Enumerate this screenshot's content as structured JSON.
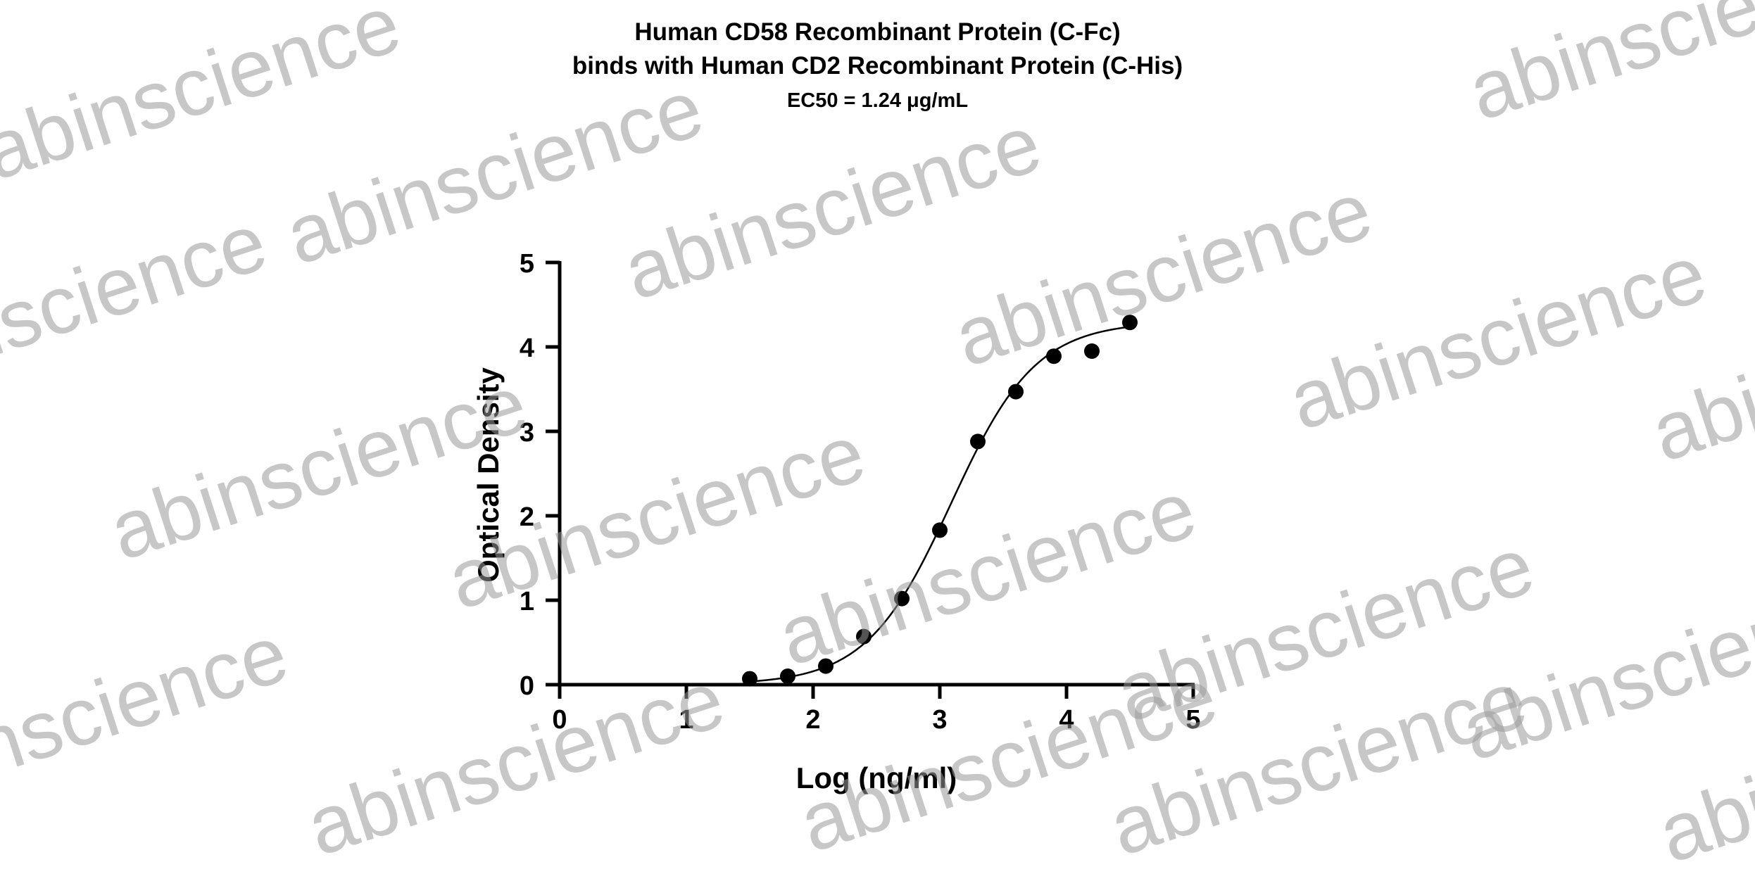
{
  "chart_data": {
    "type": "scatter",
    "title": "Human CD58 Recombinant Protein (C-Fc)",
    "subtitle": "binds with Human CD2 Recombinant Protein (C-His)",
    "annotation": "EC50 = 1.24 μg/mL",
    "xlabel": "Log (ng/ml)",
    "ylabel": "Optical Density",
    "xlim": [
      0,
      5
    ],
    "ylim": [
      0,
      5
    ],
    "xticks": [
      "0",
      "1",
      "2",
      "3",
      "4",
      "5"
    ],
    "yticks": [
      "0",
      "1",
      "2",
      "3",
      "4",
      "5"
    ],
    "grid": false,
    "legend": "none",
    "points": [
      {
        "x": 1.5,
        "y": 0.07
      },
      {
        "x": 1.8,
        "y": 0.1
      },
      {
        "x": 2.1,
        "y": 0.22
      },
      {
        "x": 2.4,
        "y": 0.57
      },
      {
        "x": 2.7,
        "y": 1.02
      },
      {
        "x": 3.0,
        "y": 1.83
      },
      {
        "x": 3.3,
        "y": 2.88
      },
      {
        "x": 3.6,
        "y": 3.47
      },
      {
        "x": 3.9,
        "y": 3.89
      },
      {
        "x": 4.2,
        "y": 3.95
      },
      {
        "x": 4.5,
        "y": 4.29
      }
    ],
    "fit_curve": {
      "model": "4PL",
      "bottom": 0.0,
      "top": 4.3,
      "log_ec50": 3.09,
      "hill_slope": 1.3,
      "x_range": [
        1.5,
        4.5
      ]
    },
    "colors": {
      "points": "#000000",
      "curve": "#000000",
      "axes": "#000000"
    }
  },
  "watermark": {
    "text": "abinscience",
    "color": "#9a9a9a"
  }
}
